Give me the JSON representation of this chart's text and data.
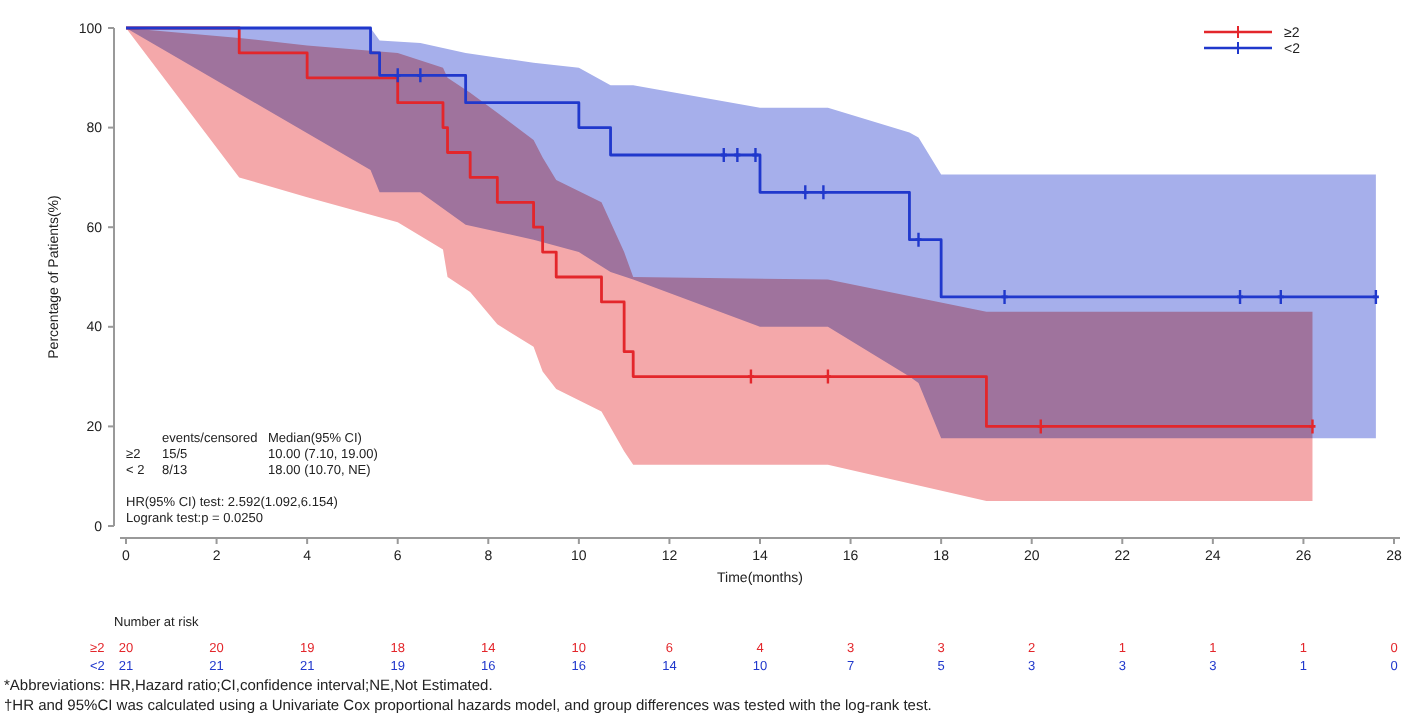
{
  "chart_data": {
    "type": "step",
    "xlabel": "Time(months)",
    "ylabel": "Percentage of Patients(%)",
    "xlim": [
      0,
      28
    ],
    "xticks": [
      0,
      2,
      4,
      6,
      8,
      10,
      12,
      14,
      16,
      18,
      20,
      22,
      24,
      26,
      28
    ],
    "ylim": [
      0,
      100
    ],
    "yticks": [
      0,
      20,
      40,
      60,
      80,
      100
    ],
    "grid": false,
    "legend": "top right",
    "line_style": "solid",
    "series": [
      {
        "name": "≥2",
        "color": "#e3262b",
        "x": [
          0,
          2.5,
          4,
          6,
          7,
          7.1,
          7.6,
          8.2,
          9,
          9.2,
          9.5,
          10.5,
          11,
          11.2,
          15.5,
          19,
          26.2
        ],
        "values": [
          100,
          95,
          90,
          85,
          80,
          75,
          70,
          65,
          60,
          55,
          50,
          45,
          35,
          30,
          30,
          20,
          20
        ],
        "upper": [
          100,
          98,
          96.5,
          95,
          92,
          90,
          87,
          83,
          77.5,
          74,
          69.5,
          65,
          55,
          50,
          49.5,
          43,
          43
        ],
        "lower": [
          100,
          70,
          66,
          61,
          55.5,
          50,
          47,
          40.5,
          36,
          31,
          27.5,
          23,
          15,
          12.3,
          12.3,
          5,
          5
        ]
      },
      {
        "name": "<2",
        "color": "#2038cc",
        "x": [
          0,
          5.4,
          5.6,
          6.5,
          7.5,
          9,
          10,
          10.7,
          11.2,
          14,
          15.5,
          17.3,
          17.5,
          18,
          27.6
        ],
        "values": [
          100,
          95,
          90.5,
          90.5,
          85,
          85,
          80,
          74.5,
          74.5,
          67,
          67,
          57.5,
          57.5,
          46,
          46
        ],
        "upper": [
          100,
          100,
          97.5,
          97,
          95,
          93,
          92,
          88.5,
          88.5,
          84,
          84,
          79,
          78,
          70.6,
          70.6
        ],
        "lower": [
          100,
          71.5,
          67,
          67,
          60.5,
          57.5,
          55,
          51,
          49.5,
          40,
          40,
          30,
          28.7,
          17.6,
          17.6
        ]
      },
      {
        "type": "scatter",
        "marker": "cross",
        "color": "#e3262b",
        "x": [
          13.8,
          15.5,
          20.2,
          26.2
        ],
        "values": [
          30,
          30,
          20,
          20
        ]
      },
      {
        "type": "scatter",
        "marker": "cross",
        "color": "#2038cc",
        "x": [
          6.0,
          6.5,
          13.2,
          13.5,
          13.9,
          15.0,
          15.4,
          17.5,
          19.4,
          24.6,
          25.5,
          27.6
        ],
        "values": [
          90.5,
          90.5,
          74.5,
          74.5,
          74.5,
          67,
          67,
          57.5,
          46,
          46,
          46,
          46
        ]
      }
    ],
    "annotations": [
      "\tevents/censored\tMedian(95% CI)",
      "≥2\t15/5\t10.00 (7.10, 19.00)",
      "< 2\t8/13\t18.00 (10.70, NE)",
      "HR(95% CI) test: 2.592(1.092,6.154)",
      "Logrank test:p = 0.0250",
      "Number at risk",
      "≥2\t20\t20\t19\t18\t14\t10\t6\t4\t3\t3\t2\t1\t1\t1\t0",
      "<2\t21\t21\t21\t19\t16\t16\t14\t10\t7\t5\t3\t3\t3\t1\t0",
      "*Abbreviations: HR,Hazard ratio;CI,confidence interval;NE,Not Estimated.",
      "†HR and 95%CI was calculated using a Univariate Cox proportional hazards model, and group differences was tested with the log-rank test."
    ]
  }
}
